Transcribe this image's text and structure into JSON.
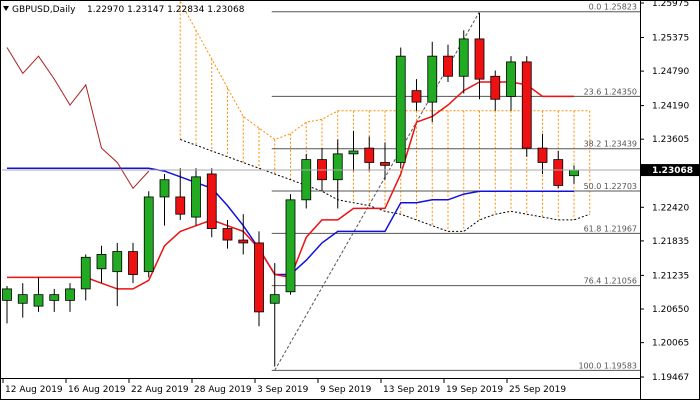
{
  "header": {
    "symbol": "GBPUSD,Daily",
    "ohlc": "1.22970 1.23147 1.22834 1.23068"
  },
  "colors": {
    "bull": "#22aa22",
    "bear": "#ee1111",
    "outline": "#000000",
    "kijun": "#1111dd",
    "tenkan": "#ee1111",
    "chikou": "#aa2222",
    "cloud": "#ff8c00",
    "fib": "#555555",
    "grid": "#000000",
    "current_box": "#000000"
  },
  "chart_data": {
    "type": "candlestick",
    "title": "GBPUSD,Daily",
    "ylim": [
      1.19467,
      1.25975
    ],
    "y_ticks": [
      "1.25975",
      "1.25375",
      "1.24790",
      "1.24190",
      "1.23605",
      "1.23068",
      "1.22420",
      "1.21835",
      "1.21235",
      "1.20650",
      "1.20065",
      "1.19467"
    ],
    "current_price": "1.23068",
    "x_ticks": [
      "12 Aug 2019",
      "16 Aug 2019",
      "22 Aug 2019",
      "28 Aug 2019",
      "3 Sep 2019",
      "9 Sep 2019",
      "13 Sep 2019",
      "19 Sep 2019",
      "25 Sep 2019"
    ],
    "candles": [
      {
        "o": 1.208,
        "h": 1.2105,
        "l": 1.204,
        "c": 1.21
      },
      {
        "o": 1.2075,
        "h": 1.211,
        "l": 1.205,
        "c": 1.209
      },
      {
        "o": 1.207,
        "h": 1.212,
        "l": 1.206,
        "c": 1.209
      },
      {
        "o": 1.208,
        "h": 1.21,
        "l": 1.206,
        "c": 1.209
      },
      {
        "o": 1.208,
        "h": 1.211,
        "l": 1.206,
        "c": 1.21
      },
      {
        "o": 1.21,
        "h": 1.216,
        "l": 1.208,
        "c": 1.2155
      },
      {
        "o": 1.2135,
        "h": 1.2175,
        "l": 1.211,
        "c": 1.216
      },
      {
        "o": 1.213,
        "h": 1.218,
        "l": 1.207,
        "c": 1.2165
      },
      {
        "o": 1.2165,
        "h": 1.218,
        "l": 1.211,
        "c": 1.2125
      },
      {
        "o": 1.213,
        "h": 1.227,
        "l": 1.212,
        "c": 1.226
      },
      {
        "o": 1.226,
        "h": 1.23,
        "l": 1.221,
        "c": 1.229
      },
      {
        "o": 1.226,
        "h": 1.231,
        "l": 1.222,
        "c": 1.223
      },
      {
        "o": 1.2225,
        "h": 1.231,
        "l": 1.221,
        "c": 1.2295
      },
      {
        "o": 1.23,
        "h": 1.231,
        "l": 1.219,
        "c": 1.2205
      },
      {
        "o": 1.2205,
        "h": 1.222,
        "l": 1.217,
        "c": 1.2185
      },
      {
        "o": 1.2185,
        "h": 1.223,
        "l": 1.216,
        "c": 1.218
      },
      {
        "o": 1.218,
        "h": 1.22,
        "l": 1.2035,
        "c": 1.206
      },
      {
        "o": 1.2075,
        "h": 1.2145,
        "l": 1.1965,
        "c": 1.209
      },
      {
        "o": 1.2095,
        "h": 1.2265,
        "l": 1.209,
        "c": 1.2255
      },
      {
        "o": 1.2255,
        "h": 1.2335,
        "l": 1.224,
        "c": 1.2325
      },
      {
        "o": 1.2325,
        "h": 1.2345,
        "l": 1.227,
        "c": 1.229
      },
      {
        "o": 1.229,
        "h": 1.236,
        "l": 1.224,
        "c": 1.2335
      },
      {
        "o": 1.2335,
        "h": 1.2375,
        "l": 1.2305,
        "c": 1.234
      },
      {
        "o": 1.2345,
        "h": 1.2365,
        "l": 1.2305,
        "c": 1.232
      },
      {
        "o": 1.232,
        "h": 1.2355,
        "l": 1.229,
        "c": 1.2315
      },
      {
        "o": 1.232,
        "h": 1.252,
        "l": 1.231,
        "c": 1.2505
      },
      {
        "o": 1.2445,
        "h": 1.2465,
        "l": 1.241,
        "c": 1.2425
      },
      {
        "o": 1.2425,
        "h": 1.253,
        "l": 1.239,
        "c": 1.2505
      },
      {
        "o": 1.2505,
        "h": 1.2525,
        "l": 1.246,
        "c": 1.247
      },
      {
        "o": 1.247,
        "h": 1.255,
        "l": 1.244,
        "c": 1.2535
      },
      {
        "o": 1.2535,
        "h": 1.258,
        "l": 1.243,
        "c": 1.2465
      },
      {
        "o": 1.247,
        "h": 1.248,
        "l": 1.241,
        "c": 1.243
      },
      {
        "o": 1.2435,
        "h": 1.2505,
        "l": 1.241,
        "c": 1.2495
      },
      {
        "o": 1.2495,
        "h": 1.2505,
        "l": 1.233,
        "c": 1.2345
      },
      {
        "o": 1.2345,
        "h": 1.237,
        "l": 1.23,
        "c": 1.232
      },
      {
        "o": 1.2325,
        "h": 1.234,
        "l": 1.2275,
        "c": 1.228
      },
      {
        "o": 1.2297,
        "h": 1.2315,
        "l": 1.2283,
        "c": 1.2307
      }
    ],
    "kijun": [
      1.231,
      1.231,
      1.231,
      1.231,
      1.231,
      1.231,
      1.231,
      1.231,
      1.231,
      1.231,
      1.2305,
      1.2295,
      1.2285,
      1.2275,
      1.2245,
      1.221,
      1.217,
      1.2125,
      1.2125,
      1.215,
      1.218,
      1.22,
      1.22,
      1.22,
      1.22,
      1.225,
      1.225,
      1.2255,
      1.2255,
      1.2265,
      1.227,
      1.227,
      1.227,
      1.227,
      1.227,
      1.227,
      1.227
    ],
    "tenkan": [
      1.212,
      1.212,
      1.212,
      1.212,
      1.212,
      1.212,
      1.211,
      1.21,
      1.21,
      1.2115,
      1.2175,
      1.22,
      1.221,
      1.222,
      1.221,
      1.22,
      1.217,
      1.2125,
      1.212,
      1.219,
      1.222,
      1.222,
      1.224,
      1.224,
      1.224,
      1.23,
      1.239,
      1.24,
      1.242,
      1.2445,
      1.246,
      1.246,
      1.246,
      1.2455,
      1.2435,
      1.2435,
      1.2435
    ],
    "chikou": [
      1.252,
      1.2475,
      1.2505,
      1.2465,
      1.242,
      1.2455,
      1.2345,
      1.232,
      1.2275,
      1.2305
    ],
    "cloud_upper": [
      1.26,
      1.255,
      1.25,
      1.245,
      1.24,
      1.238,
      1.236,
      1.237,
      1.239,
      1.2395,
      1.241,
      1.241,
      1.241,
      1.241,
      1.241,
      1.241,
      1.241,
      1.241,
      1.241,
      1.241,
      1.241,
      1.241,
      1.241,
      1.241,
      1.241,
      1.241,
      1.241
    ],
    "cloud_lower": [
      1.236,
      1.235,
      1.234,
      1.233,
      1.232,
      1.231,
      1.23,
      1.229,
      1.228,
      1.227,
      1.2255,
      1.225,
      1.2245,
      1.2235,
      1.223,
      1.222,
      1.221,
      1.22,
      1.22,
      1.222,
      1.223,
      1.2235,
      1.223,
      1.2225,
      1.222,
      1.222,
      1.223
    ],
    "fib_levels": [
      {
        "label": "0.0 1.25823",
        "value": 1.25823
      },
      {
        "label": "23.6 1.24350",
        "value": 1.2435
      },
      {
        "label": "38.2 1.23439",
        "value": 1.23439
      },
      {
        "label": "50.0 1.22703",
        "value": 1.22703
      },
      {
        "label": "61.8 1.21967",
        "value": 1.21967
      },
      {
        "label": "76.4 1.21056",
        "value": 1.21056
      },
      {
        "label": "100.0 1.19583",
        "value": 1.19583
      }
    ],
    "fib_trendline": {
      "from": {
        "index": 17,
        "value": 1.19583
      },
      "to": {
        "index": 30,
        "value": 1.25823
      }
    }
  }
}
